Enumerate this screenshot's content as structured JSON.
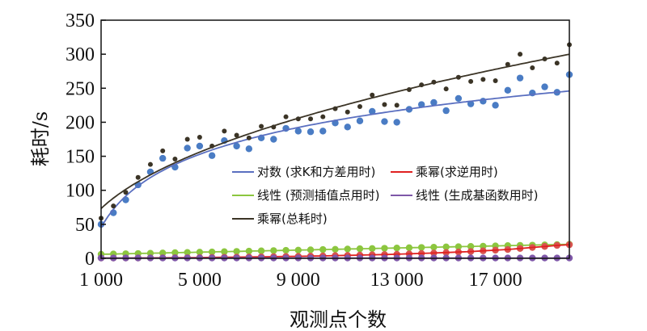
{
  "chart_data": {
    "type": "scatter",
    "xlabel": "观测点个数",
    "ylabel": "耗时/s",
    "xlim": [
      1000,
      20000
    ],
    "ylim": [
      0,
      350
    ],
    "x_ticks": [
      1000,
      5000,
      9000,
      13000,
      17000
    ],
    "x_tick_labels": [
      "1 000",
      "5 000",
      "9 000",
      "13 000",
      "17 000"
    ],
    "y_ticks": [
      0,
      50,
      100,
      150,
      200,
      250,
      300,
      350
    ],
    "y_tick_labels": [
      "0",
      "50",
      "100",
      "150",
      "200",
      "250",
      "300",
      "350"
    ],
    "grid": false,
    "legend_position": "center-right",
    "x": [
      1000,
      1500,
      2000,
      2500,
      3000,
      3500,
      4000,
      4500,
      5000,
      5500,
      6000,
      6500,
      7000,
      7500,
      8000,
      8500,
      9000,
      9500,
      10000,
      10500,
      11000,
      11500,
      12000,
      12500,
      13000,
      13500,
      14000,
      14500,
      15000,
      15500,
      16000,
      16500,
      17000,
      17500,
      18000,
      18500,
      19000,
      19500,
      20000
    ],
    "series": [
      {
        "name": "对数 (求K和方差用时)",
        "color": "#4a7cc4",
        "line_color": "#5a6fc0",
        "trend": "logarithmic",
        "values": [
          50,
          67,
          86,
          108,
          127,
          147,
          134,
          162,
          165,
          151,
          173,
          165,
          161,
          177,
          175,
          191,
          187,
          186,
          187,
          199,
          193,
          202,
          216,
          201,
          200,
          219,
          226,
          229,
          217,
          235,
          227,
          231,
          225,
          247,
          265,
          243,
          252,
          244,
          270
        ]
      },
      {
        "name": "乘幂(求逆用时)",
        "color": "#d9534f",
        "line_color": "#e02020",
        "trend": "segments",
        "values": [
          0.5,
          0.5,
          0.5,
          0.6,
          0.7,
          0.8,
          0.9,
          1,
          1.2,
          1.4,
          1.6,
          1.8,
          2,
          2.2,
          2.5,
          2.8,
          3,
          3.3,
          3.6,
          4,
          4.4,
          4.8,
          5.2,
          5.6,
          6,
          6.6,
          7.2,
          7.8,
          8.5,
          9.3,
          10,
          11,
          12,
          13,
          14.5,
          16,
          17.5,
          19,
          20
        ]
      },
      {
        "name": "线性 (预测插值点用时)",
        "color": "#8cc63f",
        "line_color": "#8cc63f",
        "trend": "linear",
        "values": [
          6,
          6.4,
          6.8,
          7.1,
          7.5,
          7.9,
          8.3,
          8.7,
          9.1,
          9.4,
          9.8,
          10.2,
          10.6,
          11,
          11.4,
          11.8,
          12.1,
          12.5,
          12.9,
          13.3,
          13.7,
          14.1,
          14.4,
          14.8,
          15.2,
          15.6,
          16,
          16.4,
          16.8,
          17.1,
          17.5,
          17.9,
          18.3,
          18.7,
          19.1,
          19.4,
          19.8,
          20.2,
          20.6
        ]
      },
      {
        "name": "线性 (生成基函数用时)",
        "color": "#7e57a8",
        "line_color": "#7e57a8",
        "trend": "linear",
        "values": [
          0.5,
          0.5,
          0.5,
          0.5,
          0.5,
          0.5,
          0.5,
          0.5,
          0.5,
          0.5,
          0.5,
          0.5,
          0.5,
          0.5,
          0.5,
          0.5,
          0.5,
          0.5,
          0.5,
          0.5,
          0.5,
          0.5,
          0.5,
          0.5,
          0.5,
          0.5,
          0.5,
          0.5,
          0.5,
          0.5,
          0.5,
          0.5,
          0.5,
          0.5,
          0.5,
          0.5,
          0.5,
          0.5,
          0.5
        ]
      },
      {
        "name": "乘幂(总耗时)",
        "color": "#3b3426",
        "line_color": "#3b3426",
        "trend": "power",
        "values": [
          59,
          77,
          97,
          119,
          138,
          158,
          146,
          175,
          178,
          165,
          187,
          181,
          177,
          194,
          193,
          208,
          205,
          205,
          208,
          220,
          215,
          223,
          240,
          226,
          225,
          248,
          255,
          259,
          249,
          266,
          260,
          263,
          261,
          285,
          300,
          280,
          293,
          287,
          314
        ]
      }
    ]
  }
}
